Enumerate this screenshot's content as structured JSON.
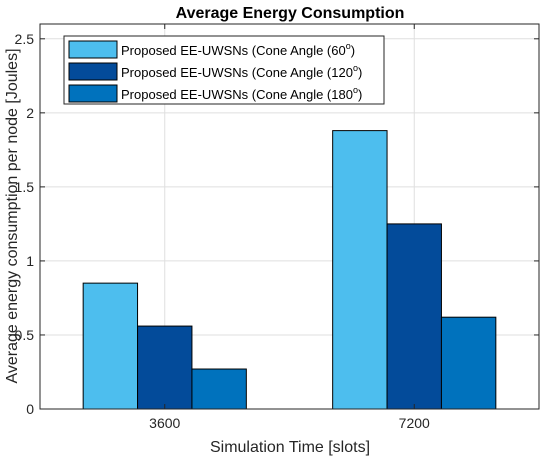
{
  "chart_data": {
    "type": "bar",
    "title": "Average Energy Consumption",
    "xlabel": "Simulation Time [slots]",
    "ylabel": "Average energy consumption per node [Joules]",
    "categories": [
      "3600",
      "7200"
    ],
    "series": [
      {
        "name": "Proposed EE-UWSNs (Cone Angle (60",
        "sup": "o",
        "close": ")",
        "color": "#4DBEEE",
        "values": [
          0.85,
          1.88
        ]
      },
      {
        "name": "Proposed EE-UWSNs (Cone Angle (120",
        "sup": "o",
        "close": ")",
        "color": "#034B9A",
        "values": [
          0.56,
          1.25
        ]
      },
      {
        "name": "Proposed EE-UWSNs (Cone Angle (180",
        "sup": "o",
        "close": ")",
        "color": "#0072BD",
        "values": [
          0.27,
          0.62
        ]
      }
    ],
    "ylim": [
      0,
      2.6
    ],
    "yticks": [
      "0",
      "0.5",
      "1",
      "1.5",
      "2",
      "2.5"
    ],
    "ytick_values": [
      0,
      0.5,
      1,
      1.5,
      2,
      2.5
    ],
    "grid": true,
    "legend_position": "top-left"
  }
}
